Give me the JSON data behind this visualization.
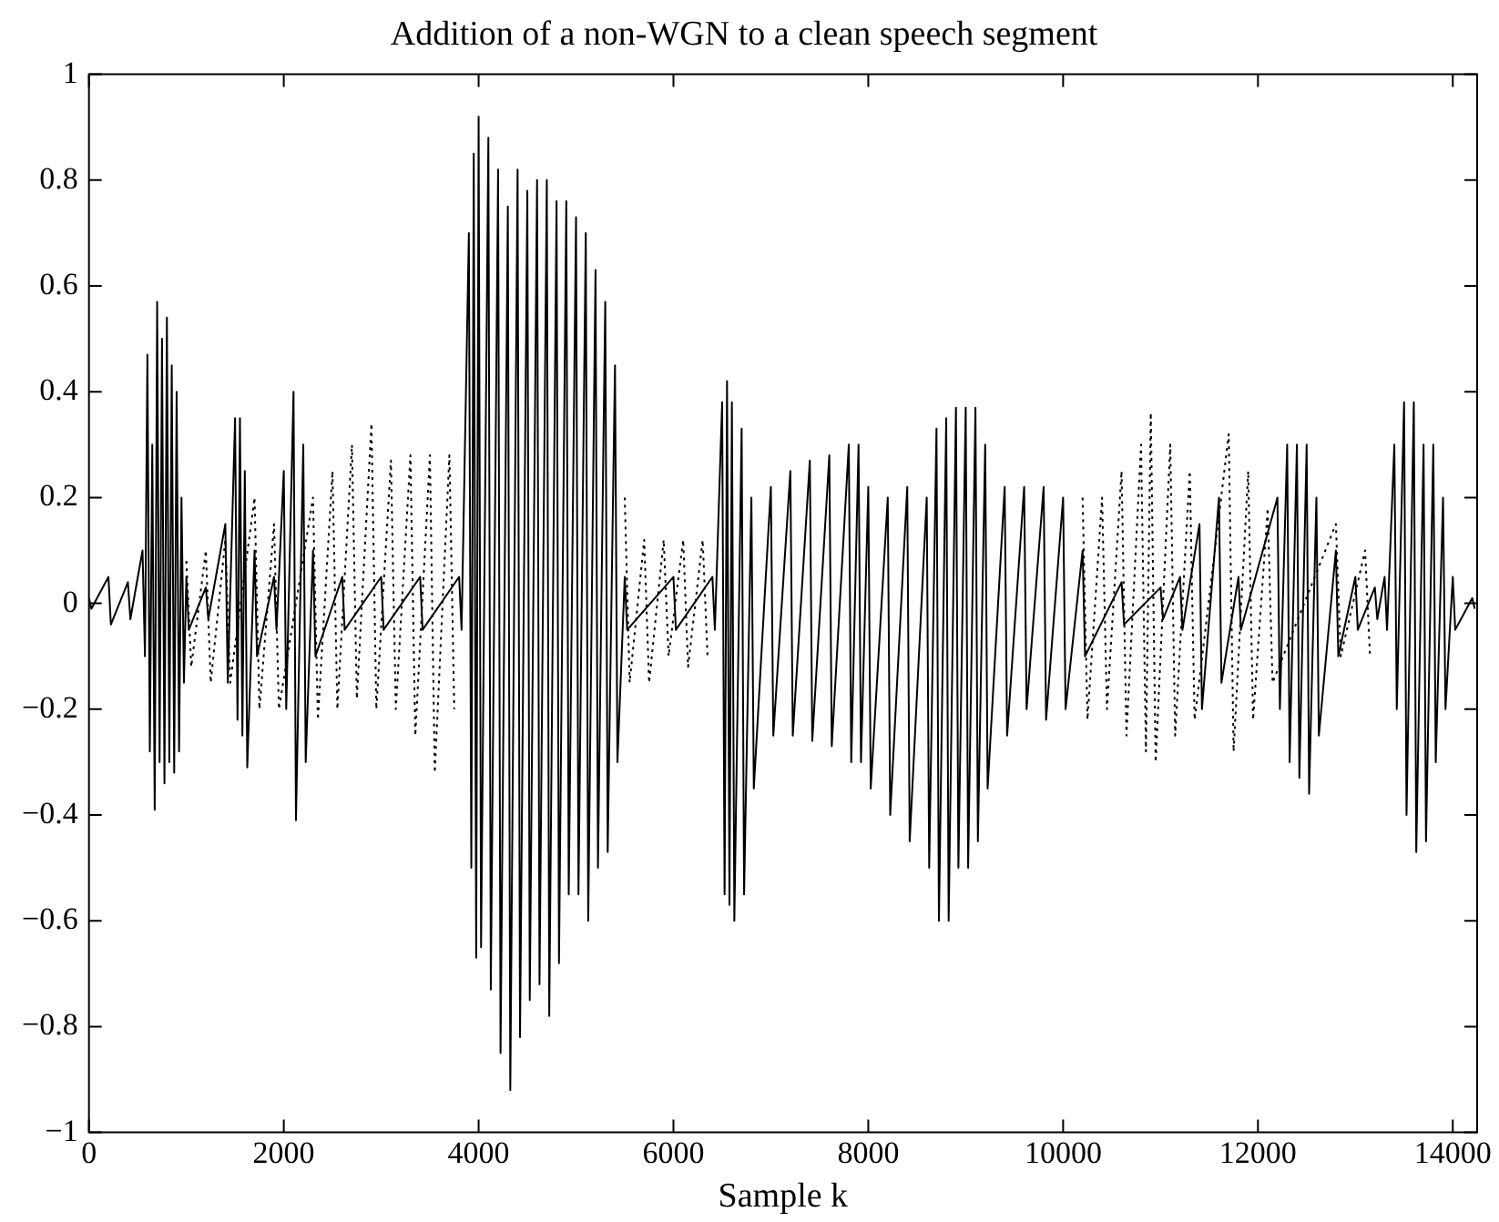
{
  "chart_data": {
    "type": "line",
    "title": "Addition of a non-WGN to a clean speech segment",
    "xlabel": "Sample k",
    "xlim": [
      0,
      14250
    ],
    "ylim": [
      -1,
      1
    ],
    "xticks": [
      0,
      2000,
      4000,
      6000,
      8000,
      10000,
      12000,
      14000
    ],
    "yticks": [
      -1,
      -0.8,
      -0.6,
      -0.4,
      -0.2,
      0,
      0.2,
      0.4,
      0.6,
      0.8,
      1
    ],
    "grid": false,
    "legend": false,
    "marker": "none",
    "series": [
      {
        "color": "#000000",
        "line_style": "solid",
        "x": [
          0,
          25,
          200,
          225,
          400,
          425,
          550,
          575,
          600,
          625,
          650,
          675,
          700,
          725,
          750,
          775,
          800,
          825,
          850,
          875,
          900,
          925,
          950,
          975,
          1000,
          1025,
          1200,
          1225,
          1400,
          1425,
          1500,
          1525,
          1550,
          1575,
          1600,
          1625,
          1700,
          1725,
          1900,
          1925,
          2000,
          2025,
          2100,
          2125,
          2200,
          2225,
          2300,
          2325,
          2600,
          2625,
          3000,
          3025,
          3400,
          3425,
          3800,
          3825,
          3900,
          3925,
          3950,
          3975,
          4000,
          4025,
          4100,
          4125,
          4200,
          4225,
          4300,
          4325,
          4400,
          4425,
          4500,
          4525,
          4600,
          4625,
          4700,
          4725,
          4800,
          4825,
          4900,
          4925,
          5000,
          5025,
          5100,
          5125,
          5200,
          5225,
          5300,
          5325,
          5400,
          5425,
          5500,
          5525,
          6000,
          6025,
          6400,
          6425,
          6500,
          6525,
          6550,
          6575,
          6600,
          6625,
          6700,
          6725,
          6800,
          6825,
          7000,
          7025,
          7200,
          7225,
          7400,
          7425,
          7600,
          7625,
          7800,
          7825,
          7900,
          7925,
          8000,
          8025,
          8200,
          8225,
          8400,
          8425,
          8600,
          8625,
          8700,
          8725,
          8800,
          8825,
          8900,
          8925,
          9000,
          9025,
          9100,
          9125,
          9200,
          9225,
          9400,
          9425,
          9600,
          9625,
          9800,
          9825,
          10000,
          10025,
          10200,
          10225,
          10600,
          10625,
          11000,
          11025,
          11200,
          11225,
          11400,
          11425,
          11600,
          11625,
          11800,
          11825,
          12200,
          12225,
          12300,
          12325,
          12400,
          12425,
          12500,
          12525,
          12600,
          12625,
          12800,
          12825,
          13000,
          13025,
          13200,
          13225,
          13300,
          13325,
          13400,
          13425,
          13500,
          13525,
          13600,
          13625,
          13700,
          13725,
          13800,
          13825,
          13900,
          13925,
          14000,
          14025,
          14200,
          14225
        ],
        "values": [
          0.01,
          -0.01,
          0.05,
          -0.04,
          0.04,
          -0.03,
          0.1,
          -0.1,
          0.47,
          -0.28,
          0.3,
          -0.39,
          0.57,
          -0.3,
          0.5,
          -0.34,
          0.54,
          -0.3,
          0.45,
          -0.32,
          0.4,
          -0.28,
          0.2,
          -0.15,
          0.05,
          -0.05,
          0.03,
          -0.03,
          0.15,
          -0.15,
          0.35,
          -0.22,
          0.35,
          -0.25,
          0.25,
          -0.31,
          0.1,
          -0.1,
          0.05,
          -0.05,
          0.25,
          -0.2,
          0.4,
          -0.41,
          0.3,
          -0.3,
          0.1,
          -0.1,
          0.05,
          -0.05,
          0.05,
          -0.05,
          0.05,
          -0.05,
          0.05,
          -0.05,
          0.7,
          -0.5,
          0.85,
          -0.67,
          0.92,
          -0.65,
          0.88,
          -0.73,
          0.82,
          -0.85,
          0.75,
          -0.92,
          0.82,
          -0.82,
          0.78,
          -0.75,
          0.8,
          -0.72,
          0.8,
          -0.78,
          0.76,
          -0.68,
          0.76,
          -0.55,
          0.73,
          -0.55,
          0.7,
          -0.6,
          0.63,
          -0.5,
          0.57,
          -0.47,
          0.45,
          -0.3,
          0.05,
          -0.05,
          0.05,
          -0.05,
          0.05,
          -0.05,
          0.38,
          -0.55,
          0.42,
          -0.57,
          0.38,
          -0.6,
          0.33,
          -0.55,
          0.2,
          -0.35,
          0.22,
          -0.25,
          0.25,
          -0.25,
          0.27,
          -0.26,
          0.28,
          -0.27,
          0.3,
          -0.3,
          0.3,
          -0.3,
          0.22,
          -0.35,
          0.2,
          -0.4,
          0.22,
          -0.45,
          0.2,
          -0.5,
          0.33,
          -0.6,
          0.35,
          -0.6,
          0.37,
          -0.5,
          0.37,
          -0.5,
          0.37,
          -0.45,
          0.3,
          -0.35,
          0.22,
          -0.25,
          0.22,
          -0.2,
          0.22,
          -0.22,
          0.2,
          -0.2,
          0.1,
          -0.1,
          0.04,
          -0.04,
          0.03,
          -0.03,
          0.05,
          -0.05,
          0.15,
          -0.2,
          0.2,
          -0.15,
          0.05,
          -0.05,
          0.2,
          -0.2,
          0.3,
          -0.3,
          0.3,
          -0.33,
          0.3,
          -0.36,
          0.2,
          -0.25,
          0.1,
          -0.1,
          0.05,
          -0.05,
          0.03,
          -0.03,
          0.05,
          -0.05,
          0.3,
          -0.2,
          0.38,
          -0.4,
          0.38,
          -0.47,
          0.3,
          -0.45,
          0.3,
          -0.3,
          0.2,
          -0.2,
          0.05,
          -0.05,
          0.01,
          -0.01
        ]
      },
      {
        "color": "#000000",
        "line_style": "dotted",
        "x": [
          1000,
          1050,
          1200,
          1250,
          1400,
          1450,
          1700,
          1750,
          1900,
          1950,
          2300,
          2350,
          2500,
          2550,
          2700,
          2750,
          2900,
          2950,
          3100,
          3150,
          3300,
          3350,
          3500,
          3550,
          3700,
          3750,
          4600,
          5500,
          5550,
          5700,
          5750,
          5900,
          5950,
          6100,
          6150,
          6300,
          6350,
          8000,
          10200,
          10250,
          10400,
          10450,
          10600,
          10650,
          10800,
          10850,
          10900,
          10950,
          11100,
          11150,
          11300,
          11350,
          11700,
          11750,
          11900,
          11950,
          12100,
          12150,
          12800,
          12850,
          13100,
          13150
        ],
        "values": [
          0.08,
          -0.12,
          0.1,
          -0.15,
          0.12,
          -0.15,
          0.2,
          -0.2,
          0.15,
          -0.2,
          0.2,
          -0.22,
          0.25,
          -0.2,
          0.3,
          -0.18,
          0.34,
          -0.2,
          0.27,
          -0.2,
          0.28,
          -0.25,
          0.28,
          -0.32,
          0.28,
          -0.2,
          null,
          0.2,
          -0.15,
          0.12,
          -0.15,
          0.12,
          -0.1,
          0.12,
          -0.12,
          0.12,
          -0.1,
          null,
          0.2,
          -0.22,
          0.2,
          -0.2,
          0.25,
          -0.25,
          0.3,
          -0.28,
          0.36,
          -0.3,
          0.3,
          -0.25,
          0.25,
          -0.22,
          0.32,
          -0.28,
          0.25,
          -0.22,
          0.18,
          -0.15,
          0.15,
          -0.1,
          0.1,
          -0.1
        ]
      }
    ]
  }
}
